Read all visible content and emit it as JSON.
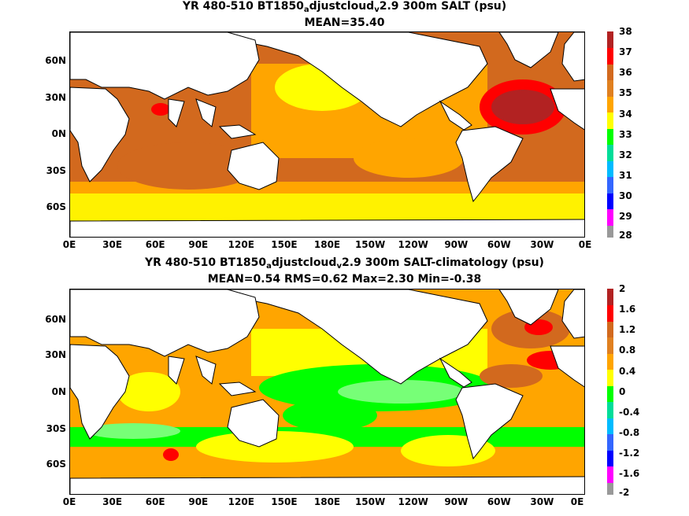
{
  "panels": [
    {
      "title_pre": "YR 480-510 BT1850",
      "title_sub1": "a",
      "title_mid": "djustcloud",
      "title_sub2": "v",
      "title_post": "2.9 300m SALT (psu)",
      "subtitle": "MEAN=35.40",
      "colorbar_levels": [
        "38",
        "37",
        "36",
        "35",
        "34",
        "33",
        "32",
        "31",
        "30",
        "29",
        "28"
      ],
      "colorbar_colors": [
        "#b22222",
        "#ff0000",
        "#d2691e",
        "#ffa500",
        "#ffff00",
        "#00ff00",
        "#00dd99",
        "#00bbff",
        "#3366ff",
        "#0000ff",
        "#cc00cc",
        "#ff00ff",
        "#999999"
      ]
    },
    {
      "title_pre": "YR 480-510 BT1850",
      "title_sub1": "a",
      "title_mid": "djustcloud",
      "title_sub2": "v",
      "title_post": "2.9 300m SALT-climatology (psu)",
      "subtitle": "MEAN=0.54   RMS=0.62   Max=2.30   Min=-0.38",
      "colorbar_levels": [
        "2",
        "1.6",
        "1.2",
        "0.8",
        "0.4",
        "0",
        "-0.4",
        "-0.8",
        "-1.2",
        "-1.6",
        "-2"
      ],
      "colorbar_colors": [
        "#b22222",
        "#ff0000",
        "#d2691e",
        "#ffa500",
        "#ffff00",
        "#00ff00",
        "#00dd99",
        "#00bbff",
        "#3366ff",
        "#0000ff",
        "#cc00cc",
        "#ff00ff",
        "#999999"
      ]
    }
  ],
  "x_ticks": [
    "0E",
    "30E",
    "60E",
    "90E",
    "120E",
    "150E",
    "180E",
    "150W",
    "120W",
    "90W",
    "60W",
    "30W",
    "0E"
  ],
  "y_ticks": [
    "60N",
    "30N",
    "0N",
    "30S",
    "60S"
  ],
  "colors": {
    "land": "#ffffff",
    "coast": "#000000"
  }
}
